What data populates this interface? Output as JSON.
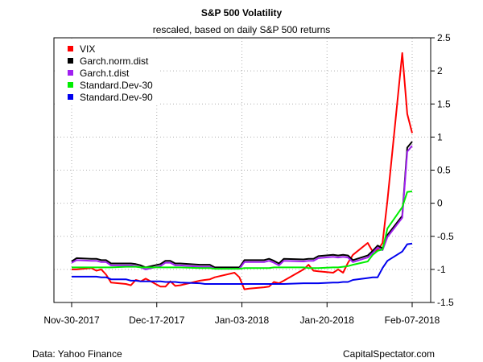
{
  "chart_data": {
    "type": "line",
    "title": "S&P 500 Volatility",
    "subtitle": "rescaled, based on daily S&P 500 returns",
    "source_left": "Data: Yahoo Finance",
    "source_right": "CapitalSpectator.com",
    "x_ticks": [
      "Nov-30-2017",
      "Dec-17-2017",
      "Jan-03-2018",
      "Jan-20-2018",
      "Feb-07-2018"
    ],
    "y_ticks": [
      "-1.5",
      "-1",
      "-0.5",
      "0",
      "0.5",
      "1",
      "1.5",
      "2",
      "2.5"
    ],
    "xlim": [
      "2017-11-30",
      "2018-02-07"
    ],
    "ylim": [
      -1.5,
      2.5
    ],
    "grid": true,
    "legend_position": "top-left",
    "x": [
      "2017-11-30",
      "2017-12-01",
      "2017-12-04",
      "2017-12-05",
      "2017-12-06",
      "2017-12-07",
      "2017-12-08",
      "2017-12-11",
      "2017-12-12",
      "2017-12-13",
      "2017-12-14",
      "2017-12-15",
      "2017-12-18",
      "2017-12-19",
      "2017-12-20",
      "2017-12-21",
      "2017-12-22",
      "2017-12-26",
      "2017-12-27",
      "2017-12-28",
      "2017-12-29",
      "2018-01-02",
      "2018-01-03",
      "2018-01-04",
      "2018-01-05",
      "2018-01-08",
      "2018-01-09",
      "2018-01-10",
      "2018-01-11",
      "2018-01-12",
      "2018-01-16",
      "2018-01-17",
      "2018-01-18",
      "2018-01-19",
      "2018-01-22",
      "2018-01-23",
      "2018-01-24",
      "2018-01-25",
      "2018-01-26",
      "2018-01-29",
      "2018-01-30",
      "2018-01-31",
      "2018-02-01",
      "2018-02-02",
      "2018-02-05",
      "2018-02-06",
      "2018-02-07"
    ],
    "series": [
      {
        "name": "VIX",
        "color": "#ff0000",
        "values": [
          -1.0,
          -1.0,
          -0.98,
          -1.02,
          -1.0,
          -1.08,
          -1.2,
          -1.22,
          -1.24,
          -1.16,
          -1.18,
          -1.14,
          -1.26,
          -1.26,
          -1.18,
          -1.25,
          -1.24,
          -1.17,
          -1.16,
          -1.15,
          -1.12,
          -1.05,
          -1.12,
          -1.3,
          -1.29,
          -1.27,
          -1.26,
          -1.19,
          -1.21,
          -1.17,
          -1.0,
          -0.93,
          -1.02,
          -1.03,
          -1.05,
          -1.0,
          -1.05,
          -0.9,
          -0.78,
          -0.6,
          -0.73,
          -0.71,
          -0.6,
          0.04,
          2.27,
          1.35,
          1.06
        ]
      },
      {
        "name": "Garch.norm.dist",
        "color": "#000000",
        "values": [
          -0.88,
          -0.83,
          -0.84,
          -0.84,
          -0.86,
          -0.86,
          -0.91,
          -0.91,
          -0.91,
          -0.92,
          -0.94,
          -0.97,
          -0.92,
          -0.87,
          -0.87,
          -0.91,
          -0.91,
          -0.93,
          -0.93,
          -0.93,
          -0.97,
          -0.97,
          -0.97,
          -0.86,
          -0.86,
          -0.86,
          -0.84,
          -0.87,
          -0.91,
          -0.84,
          -0.85,
          -0.84,
          -0.84,
          -0.8,
          -0.78,
          -0.79,
          -0.78,
          -0.79,
          -0.86,
          -0.79,
          -0.72,
          -0.64,
          -0.68,
          -0.48,
          -0.19,
          0.84,
          0.93
        ]
      },
      {
        "name": "Garch.t.dist",
        "color": "#a020f0",
        "values": [
          -0.9,
          -0.86,
          -0.87,
          -0.87,
          -0.89,
          -0.89,
          -0.94,
          -0.94,
          -0.94,
          -0.95,
          -0.97,
          -1.0,
          -0.95,
          -0.9,
          -0.9,
          -0.94,
          -0.94,
          -0.96,
          -0.96,
          -0.96,
          -0.99,
          -0.99,
          -0.99,
          -0.89,
          -0.89,
          -0.89,
          -0.87,
          -0.9,
          -0.94,
          -0.87,
          -0.88,
          -0.87,
          -0.87,
          -0.83,
          -0.81,
          -0.82,
          -0.81,
          -0.82,
          -0.89,
          -0.82,
          -0.75,
          -0.67,
          -0.71,
          -0.51,
          -0.22,
          0.78,
          0.87
        ]
      },
      {
        "name": "Standard.Dev-30",
        "color": "#00ee00",
        "values": [
          -0.97,
          -0.97,
          -0.97,
          -0.97,
          -0.97,
          -0.97,
          -0.97,
          -0.96,
          -0.96,
          -0.96,
          -0.97,
          -0.97,
          -0.97,
          -0.97,
          -0.97,
          -0.97,
          -0.97,
          -0.98,
          -0.98,
          -0.98,
          -0.99,
          -0.99,
          -0.99,
          -0.98,
          -0.98,
          -0.98,
          -0.98,
          -0.97,
          -0.97,
          -0.97,
          -0.97,
          -0.98,
          -0.98,
          -0.98,
          -0.97,
          -0.97,
          -0.96,
          -0.95,
          -0.93,
          -0.88,
          -0.78,
          -0.72,
          -0.7,
          -0.38,
          -0.06,
          0.17,
          0.18
        ]
      },
      {
        "name": "Standard.Dev-90",
        "color": "#0000ee",
        "values": [
          -1.11,
          -1.11,
          -1.11,
          -1.11,
          -1.12,
          -1.12,
          -1.15,
          -1.15,
          -1.17,
          -1.17,
          -1.18,
          -1.18,
          -1.18,
          -1.19,
          -1.19,
          -1.19,
          -1.2,
          -1.21,
          -1.22,
          -1.22,
          -1.22,
          -1.22,
          -1.22,
          -1.22,
          -1.22,
          -1.22,
          -1.22,
          -1.22,
          -1.22,
          -1.22,
          -1.21,
          -1.21,
          -1.21,
          -1.21,
          -1.2,
          -1.2,
          -1.19,
          -1.19,
          -1.16,
          -1.13,
          -1.12,
          -1.12,
          -0.98,
          -0.87,
          -0.73,
          -0.62,
          -0.61
        ]
      }
    ]
  }
}
